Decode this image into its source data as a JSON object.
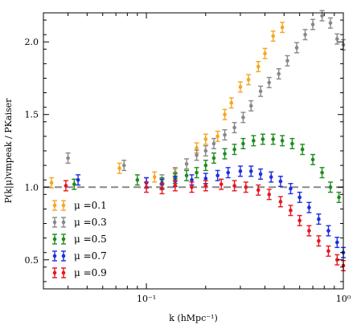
{
  "chart_data": {
    "type": "scatter",
    "x_scale": "log",
    "xlim": [
      0.03,
      1.0
    ],
    "ylim": [
      0.3,
      2.2
    ],
    "xlabel": "k (hMpc⁻¹)",
    "ylabel": "P(k|μ)vmpeak / PKaiser",
    "x_ticks": [
      {
        "value": 0.1,
        "label": "10⁻¹"
      },
      {
        "value": 1.0,
        "label": "10⁰"
      }
    ],
    "y_ticks": [
      0.5,
      1.0,
      1.5,
      2.0
    ],
    "y_tick_labels": [
      "0.5",
      "1.0",
      "1.5",
      "2.0"
    ],
    "reference_line": {
      "y": 1.0,
      "style": "dashed",
      "color": "#888888"
    },
    "legend": {
      "position": "lower-left"
    },
    "series": [
      {
        "name": "μ =0.1",
        "color": "#f5a623",
        "points": [
          [
            0.033,
            1.03
          ],
          [
            0.073,
            1.13
          ],
          [
            0.11,
            1.07
          ],
          [
            0.14,
            1.09
          ],
          [
            0.18,
            1.27
          ],
          [
            0.2,
            1.33
          ],
          [
            0.23,
            1.35
          ],
          [
            0.25,
            1.5
          ],
          [
            0.27,
            1.58
          ],
          [
            0.3,
            1.69
          ],
          [
            0.33,
            1.74
          ],
          [
            0.37,
            1.83
          ],
          [
            0.4,
            1.92
          ],
          [
            0.44,
            2.04
          ],
          [
            0.49,
            2.1
          ]
        ]
      },
      {
        "name": "μ =0.3",
        "color": "#888888",
        "points": [
          [
            0.04,
            1.2
          ],
          [
            0.077,
            1.15
          ],
          [
            0.1,
            1.03
          ],
          [
            0.12,
            1.05
          ],
          [
            0.14,
            1.1
          ],
          [
            0.16,
            1.16
          ],
          [
            0.18,
            1.22
          ],
          [
            0.2,
            1.25
          ],
          [
            0.22,
            1.3
          ],
          [
            0.25,
            1.36
          ],
          [
            0.28,
            1.41
          ],
          [
            0.31,
            1.48
          ],
          [
            0.34,
            1.56
          ],
          [
            0.38,
            1.66
          ],
          [
            0.42,
            1.72
          ],
          [
            0.47,
            1.78
          ],
          [
            0.52,
            1.87
          ],
          [
            0.58,
            1.96
          ],
          [
            0.64,
            2.05
          ],
          [
            0.7,
            2.12
          ],
          [
            0.78,
            2.18
          ],
          [
            0.86,
            2.13
          ],
          [
            0.93,
            2.02
          ],
          [
            1.0,
            1.98
          ]
        ]
      },
      {
        "name": "μ =0.5",
        "color": "#1e8c1e",
        "points": [
          [
            0.043,
            1.02
          ],
          [
            0.09,
            1.05
          ],
          [
            0.12,
            1.03
          ],
          [
            0.14,
            1.06
          ],
          [
            0.16,
            1.08
          ],
          [
            0.18,
            1.1
          ],
          [
            0.2,
            1.15
          ],
          [
            0.22,
            1.2
          ],
          [
            0.25,
            1.23
          ],
          [
            0.28,
            1.26
          ],
          [
            0.31,
            1.3
          ],
          [
            0.35,
            1.32
          ],
          [
            0.39,
            1.33
          ],
          [
            0.44,
            1.33
          ],
          [
            0.49,
            1.32
          ],
          [
            0.55,
            1.3
          ],
          [
            0.62,
            1.26
          ],
          [
            0.7,
            1.19
          ],
          [
            0.78,
            1.1
          ],
          [
            0.86,
            1.0
          ],
          [
            0.95,
            0.93
          ]
        ]
      },
      {
        "name": "μ =0.7",
        "color": "#1c2fe0",
        "points": [
          [
            0.045,
            1.05
          ],
          [
            0.1,
            1.03
          ],
          [
            0.12,
            1.02
          ],
          [
            0.14,
            1.04
          ],
          [
            0.17,
            1.05
          ],
          [
            0.2,
            1.06
          ],
          [
            0.23,
            1.08
          ],
          [
            0.26,
            1.1
          ],
          [
            0.3,
            1.11
          ],
          [
            0.34,
            1.11
          ],
          [
            0.38,
            1.09
          ],
          [
            0.43,
            1.07
          ],
          [
            0.48,
            1.04
          ],
          [
            0.54,
            0.99
          ],
          [
            0.6,
            0.93
          ],
          [
            0.67,
            0.86
          ],
          [
            0.75,
            0.78
          ],
          [
            0.84,
            0.7
          ],
          [
            0.93,
            0.62
          ],
          [
            1.0,
            0.55
          ]
        ]
      },
      {
        "name": "μ =0.9",
        "color": "#e8141e",
        "points": [
          [
            0.039,
            1.01
          ],
          [
            0.1,
            1.0
          ],
          [
            0.12,
            0.99
          ],
          [
            0.14,
            1.01
          ],
          [
            0.17,
            1.0
          ],
          [
            0.2,
            1.01
          ],
          [
            0.24,
            1.02
          ],
          [
            0.28,
            1.01
          ],
          [
            0.32,
            1.0
          ],
          [
            0.37,
            0.98
          ],
          [
            0.42,
            0.95
          ],
          [
            0.48,
            0.9
          ],
          [
            0.54,
            0.84
          ],
          [
            0.6,
            0.77
          ],
          [
            0.67,
            0.7
          ],
          [
            0.75,
            0.63
          ],
          [
            0.84,
            0.56
          ],
          [
            0.93,
            0.5
          ],
          [
            1.0,
            0.46
          ]
        ]
      }
    ]
  }
}
